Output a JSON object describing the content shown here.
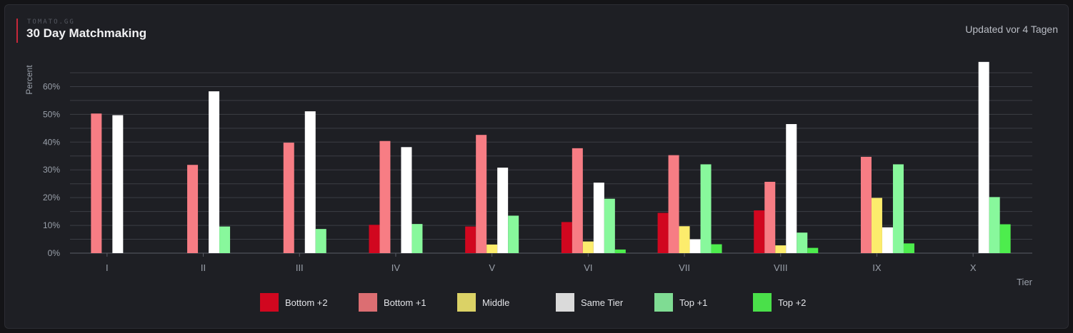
{
  "header": {
    "brand": "TOMATO.GG",
    "title": "30 Day Matchmaking",
    "updated": "Updated vor 4 Tagen"
  },
  "chart_data": {
    "type": "bar",
    "title": "30 Day Matchmaking",
    "xlabel": "Tier",
    "ylabel": "Percent",
    "ylim": [
      0,
      65
    ],
    "grid": true,
    "legend_position": "bottom",
    "ytick_labels": [
      "0%",
      "10%",
      "20%",
      "30%",
      "40%",
      "50%",
      "60%"
    ],
    "yticks": [
      0,
      10,
      20,
      30,
      40,
      50,
      60
    ],
    "gridlines": [
      0,
      5,
      10,
      15,
      20,
      25,
      30,
      35,
      40,
      45,
      50,
      55,
      60,
      65
    ],
    "categories": [
      "I",
      "II",
      "III",
      "IV",
      "V",
      "VI",
      "VII",
      "VIII",
      "IX",
      "X"
    ],
    "series": [
      {
        "name": "Bottom +2",
        "color": "#d1071f",
        "legend_color": "#d1071f",
        "values": [
          0,
          0,
          0,
          10.2,
          9.6,
          11.2,
          14.5,
          15.4,
          0,
          0
        ]
      },
      {
        "name": "Bottom +1",
        "color": "#f77d84",
        "legend_color": "#dc6e72",
        "values": [
          50.3,
          31.8,
          39.8,
          40.4,
          42.6,
          37.8,
          35.3,
          25.7,
          34.7,
          0
        ]
      },
      {
        "name": "Middle",
        "color": "#fcec6c",
        "legend_color": "#dbd266",
        "values": [
          0,
          0,
          0,
          0,
          3.1,
          4.2,
          9.7,
          2.8,
          19.9,
          0
        ]
      },
      {
        "name": "Same Tier",
        "color": "#ffffff",
        "legend_color": "#dadada",
        "values": [
          49.7,
          58.3,
          51.1,
          38.2,
          30.8,
          25.4,
          5.0,
          46.5,
          9.3,
          68.9
        ]
      },
      {
        "name": "Top +1",
        "color": "#88f89c",
        "legend_color": "#7fdc93",
        "values": [
          0,
          9.6,
          8.7,
          10.5,
          13.5,
          19.6,
          32.0,
          7.4,
          32.0,
          20.2
        ]
      },
      {
        "name": "Top +2",
        "color": "#4ded4d",
        "legend_color": "#4ae04a",
        "values": [
          0,
          0,
          0,
          0,
          0,
          1.3,
          3.2,
          1.9,
          3.5,
          10.4
        ]
      }
    ]
  }
}
